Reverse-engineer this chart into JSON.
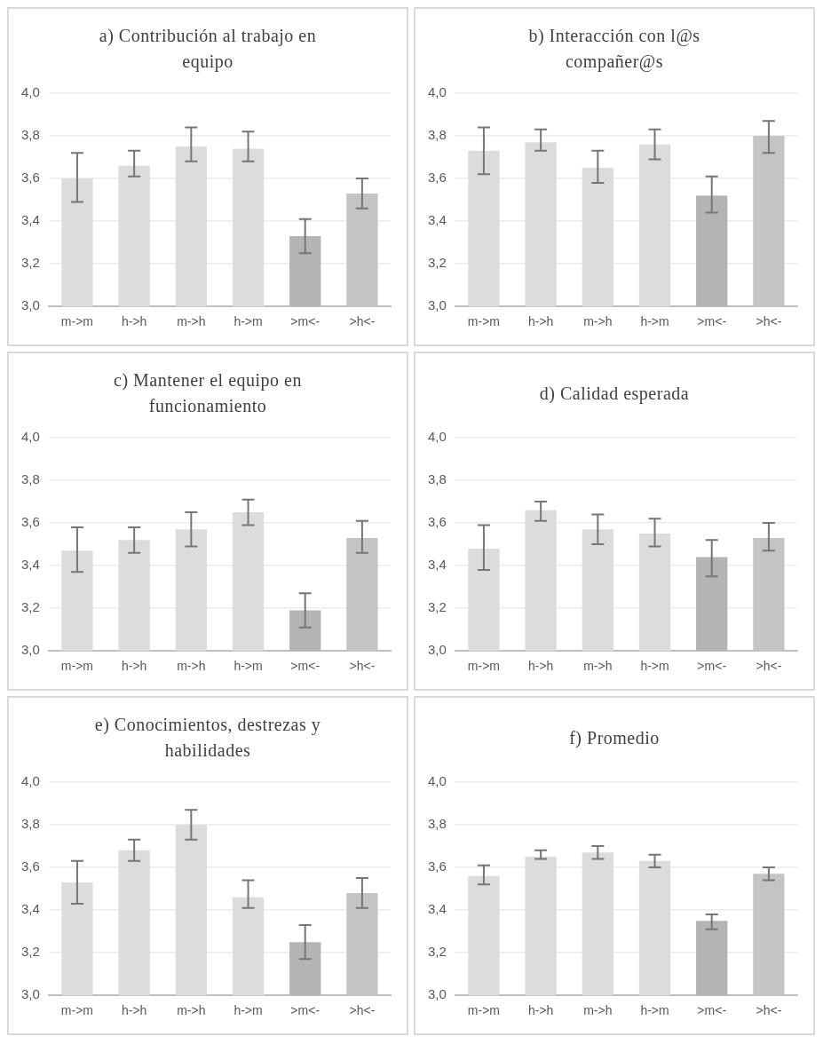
{
  "chart_data": [
    {
      "type": "bar",
      "title": "a) Contribución al trabajo en equipo",
      "categories": [
        "m->m",
        "h->h",
        "m->h",
        "h->m",
        ">m<-",
        ">h<-"
      ],
      "values": [
        3.6,
        3.66,
        3.75,
        3.74,
        3.33,
        3.53
      ],
      "errors": [
        [
          3.49,
          3.72
        ],
        [
          3.61,
          3.73
        ],
        [
          3.68,
          3.84
        ],
        [
          3.68,
          3.82
        ],
        [
          3.25,
          3.41
        ],
        [
          3.46,
          3.6
        ]
      ],
      "colors": [
        "#dcdcdc",
        "#dcdcdc",
        "#dcdcdc",
        "#dcdcdc",
        "#b4b4b4",
        "#c4c4c4"
      ],
      "ylim": [
        3,
        4
      ],
      "yticks": [
        {
          "value": 3,
          "label": "3,0"
        },
        {
          "value": 3.2,
          "label": "3,2"
        },
        {
          "value": 3.4,
          "label": "3,4"
        },
        {
          "value": 3.6,
          "label": "3,6"
        },
        {
          "value": 3.8,
          "label": "3,8"
        },
        {
          "value": 4,
          "label": "4,0"
        }
      ],
      "grid": "y",
      "legend": false
    },
    {
      "type": "bar",
      "title": "b) Interacción con l@s compañer@s",
      "categories": [
        "m->m",
        "h->h",
        "m->h",
        "h->m",
        ">m<-",
        ">h<-"
      ],
      "values": [
        3.73,
        3.77,
        3.65,
        3.76,
        3.52,
        3.8
      ],
      "errors": [
        [
          3.62,
          3.84
        ],
        [
          3.73,
          3.83
        ],
        [
          3.58,
          3.73
        ],
        [
          3.69,
          3.83
        ],
        [
          3.44,
          3.61
        ],
        [
          3.72,
          3.87
        ]
      ],
      "colors": [
        "#dcdcdc",
        "#dcdcdc",
        "#dcdcdc",
        "#dcdcdc",
        "#b4b4b4",
        "#c4c4c4"
      ],
      "ylim": [
        3,
        4
      ],
      "yticks": [
        {
          "value": 3,
          "label": "3,0"
        },
        {
          "value": 3.2,
          "label": "3,2"
        },
        {
          "value": 3.4,
          "label": "3,4"
        },
        {
          "value": 3.6,
          "label": "3,6"
        },
        {
          "value": 3.8,
          "label": "3,8"
        },
        {
          "value": 4,
          "label": "4,0"
        }
      ],
      "grid": "y",
      "legend": false
    },
    {
      "type": "bar",
      "title": "c) Mantener el equipo en funcionamiento",
      "categories": [
        "m->m",
        "h->h",
        "m->h",
        "h->m",
        ">m<-",
        ">h<-"
      ],
      "values": [
        3.47,
        3.52,
        3.57,
        3.65,
        3.19,
        3.53
      ],
      "errors": [
        [
          3.37,
          3.58
        ],
        [
          3.46,
          3.58
        ],
        [
          3.49,
          3.65
        ],
        [
          3.59,
          3.71
        ],
        [
          3.11,
          3.27
        ],
        [
          3.46,
          3.61
        ]
      ],
      "colors": [
        "#dcdcdc",
        "#dcdcdc",
        "#dcdcdc",
        "#dcdcdc",
        "#b4b4b4",
        "#c4c4c4"
      ],
      "ylim": [
        3,
        4
      ],
      "yticks": [
        {
          "value": 3,
          "label": "3,0"
        },
        {
          "value": 3.2,
          "label": "3,2"
        },
        {
          "value": 3.4,
          "label": "3,4"
        },
        {
          "value": 3.6,
          "label": "3,6"
        },
        {
          "value": 3.8,
          "label": "3,8"
        },
        {
          "value": 4,
          "label": "4,0"
        }
      ],
      "grid": "y",
      "legend": false
    },
    {
      "type": "bar",
      "title": "d) Calidad esperada",
      "categories": [
        "m->m",
        "h->h",
        "m->h",
        "h->m",
        ">m<-",
        ">h<-"
      ],
      "values": [
        3.48,
        3.66,
        3.57,
        3.55,
        3.44,
        3.53
      ],
      "errors": [
        [
          3.38,
          3.59
        ],
        [
          3.61,
          3.7
        ],
        [
          3.5,
          3.64
        ],
        [
          3.49,
          3.62
        ],
        [
          3.35,
          3.52
        ],
        [
          3.47,
          3.6
        ]
      ],
      "colors": [
        "#dcdcdc",
        "#dcdcdc",
        "#dcdcdc",
        "#dcdcdc",
        "#b4b4b4",
        "#c4c4c4"
      ],
      "ylim": [
        3,
        4
      ],
      "yticks": [
        {
          "value": 3,
          "label": "3,0"
        },
        {
          "value": 3.2,
          "label": "3,2"
        },
        {
          "value": 3.4,
          "label": "3,4"
        },
        {
          "value": 3.6,
          "label": "3,6"
        },
        {
          "value": 3.8,
          "label": "3,8"
        },
        {
          "value": 4,
          "label": "4,0"
        }
      ],
      "grid": "y",
      "legend": false
    },
    {
      "type": "bar",
      "title": "e) Conocimientos, destrezas y habilidades",
      "categories": [
        "m->m",
        "h->h",
        "m->h",
        "h->m",
        ">m<-",
        ">h<-"
      ],
      "values": [
        3.53,
        3.68,
        3.8,
        3.46,
        3.25,
        3.48
      ],
      "errors": [
        [
          3.43,
          3.63
        ],
        [
          3.63,
          3.73
        ],
        [
          3.73,
          3.87
        ],
        [
          3.41,
          3.54
        ],
        [
          3.17,
          3.33
        ],
        [
          3.41,
          3.55
        ]
      ],
      "colors": [
        "#dcdcdc",
        "#dcdcdc",
        "#dcdcdc",
        "#dcdcdc",
        "#b4b4b4",
        "#c4c4c4"
      ],
      "ylim": [
        3,
        4
      ],
      "yticks": [
        {
          "value": 3,
          "label": "3,0"
        },
        {
          "value": 3.2,
          "label": "3,2"
        },
        {
          "value": 3.4,
          "label": "3,4"
        },
        {
          "value": 3.6,
          "label": "3,6"
        },
        {
          "value": 3.8,
          "label": "3,8"
        },
        {
          "value": 4,
          "label": "4,0"
        }
      ],
      "grid": "y",
      "legend": false
    },
    {
      "type": "bar",
      "title": "f) Promedio",
      "categories": [
        "m->m",
        "h->h",
        "m->h",
        "h->m",
        ">m<-",
        ">h<-"
      ],
      "values": [
        3.56,
        3.65,
        3.67,
        3.63,
        3.35,
        3.57
      ],
      "errors": [
        [
          3.52,
          3.61
        ],
        [
          3.64,
          3.68
        ],
        [
          3.64,
          3.7
        ],
        [
          3.6,
          3.66
        ],
        [
          3.31,
          3.38
        ],
        [
          3.54,
          3.6
        ]
      ],
      "colors": [
        "#dcdcdc",
        "#dcdcdc",
        "#dcdcdc",
        "#dcdcdc",
        "#b4b4b4",
        "#c4c4c4"
      ],
      "ylim": [
        3,
        4
      ],
      "yticks": [
        {
          "value": 3,
          "label": "3,0"
        },
        {
          "value": 3.2,
          "label": "3,2"
        },
        {
          "value": 3.4,
          "label": "3,4"
        },
        {
          "value": 3.6,
          "label": "3,6"
        },
        {
          "value": 3.8,
          "label": "3,8"
        },
        {
          "value": 4,
          "label": "4,0"
        }
      ],
      "grid": "y",
      "legend": false
    }
  ]
}
